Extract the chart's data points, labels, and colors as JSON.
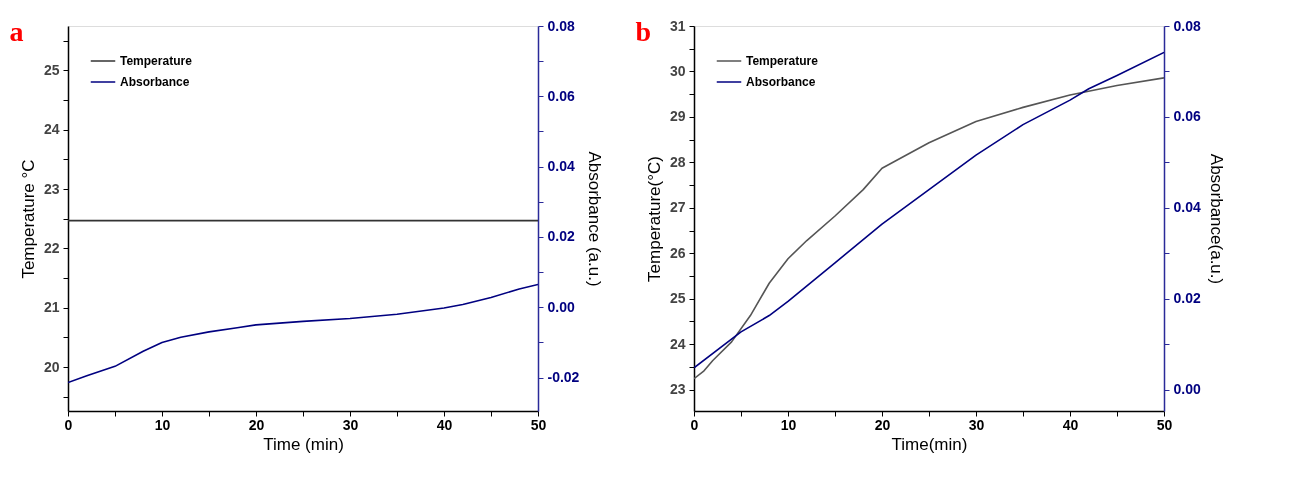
{
  "chart_data": [
    {
      "type": "line",
      "title": "a",
      "xlabel": "Time (min)",
      "ylabel": "Temperature °C",
      "y2label": "Absorbance (a.u.)",
      "xlim": [
        0,
        50
      ],
      "xticks": [
        0,
        {
          "value": 5,
          "label": null
        },
        10,
        {
          "value": 15,
          "label": null
        },
        20,
        {
          "value": 25,
          "label": null
        },
        30,
        {
          "value": 35,
          "label": null
        },
        40,
        {
          "value": 45,
          "label": null
        },
        50
      ],
      "ylim": [
        19.26,
        25.75
      ],
      "yticks": [
        {
          "value": 19.5,
          "label": null
        },
        20,
        {
          "value": 20.5,
          "label": null
        },
        21,
        {
          "value": 21.5,
          "label": null
        },
        22,
        {
          "value": 22.5,
          "label": null
        },
        23,
        {
          "value": 23.5,
          "label": null
        },
        24,
        {
          "value": 24.5,
          "label": null
        },
        25,
        {
          "value": 25.5,
          "label": null
        }
      ],
      "y2lim": [
        -0.0295,
        0.08
      ],
      "y2ticks": [
        -0.02,
        {
          "value": -0.01,
          "label": null
        },
        {
          "value": 0,
          "label": "0.00"
        },
        {
          "value": 0.01,
          "label": null
        },
        0.02,
        {
          "value": 0.03,
          "label": null
        },
        0.04,
        {
          "value": 0.05,
          "label": null
        },
        0.06,
        {
          "value": 0.07,
          "label": null
        },
        0.08
      ],
      "legend": "top left",
      "grid": false,
      "marker": "none",
      "line_style": "solid",
      "series": [
        {
          "name": "Temperature",
          "color": "#333333",
          "axis": "y",
          "x": [
            0,
            50
          ],
          "values": [
            22.47,
            22.47
          ]
        },
        {
          "name": "Absorbance",
          "color": "#000080",
          "axis": "y2",
          "x": [
            0,
            2,
            5,
            8,
            10,
            12,
            15,
            18,
            20,
            25,
            30,
            35,
            40,
            42,
            45,
            48,
            50
          ],
          "values": [
            -0.0214,
            -0.0195,
            -0.0168,
            -0.0125,
            -0.01,
            -0.0085,
            -0.007,
            -0.0058,
            -0.005,
            -0.004,
            -0.0032,
            -0.002,
            -0.0002,
            0.0008,
            0.0028,
            0.0052,
            0.0065
          ]
        }
      ]
    },
    {
      "type": "line",
      "title": "b",
      "xlabel": "Time(min)",
      "ylabel": "Temperature(°C)",
      "y2label": "Absorbance(a.u.)",
      "xlim": [
        0,
        50
      ],
      "xticks": [
        0,
        {
          "value": 5,
          "label": null
        },
        10,
        {
          "value": 15,
          "label": null
        },
        20,
        {
          "value": 25,
          "label": null
        },
        30,
        {
          "value": 35,
          "label": null
        },
        40,
        {
          "value": 45,
          "label": null
        },
        50
      ],
      "ylim": [
        22.53,
        31
      ],
      "yticks": [
        23,
        {
          "value": 23.5,
          "label": null
        },
        24,
        {
          "value": 24.5,
          "label": null
        },
        25,
        {
          "value": 25.5,
          "label": null
        },
        26,
        {
          "value": 26.5,
          "label": null
        },
        27,
        {
          "value": 27.5,
          "label": null
        },
        28,
        {
          "value": 28.5,
          "label": null
        },
        29,
        {
          "value": 29.5,
          "label": null
        },
        30,
        {
          "value": 30.5,
          "label": null
        },
        31
      ],
      "y2lim": [
        -0.0047,
        0.08
      ],
      "y2ticks": [
        {
          "value": 0,
          "label": "0.00"
        },
        {
          "value": 0.01,
          "label": null
        },
        0.02,
        {
          "value": 0.03,
          "label": null
        },
        0.04,
        {
          "value": 0.05,
          "label": null
        },
        0.06,
        {
          "value": 0.07,
          "label": null
        },
        0.08
      ],
      "legend": "top left",
      "grid": false,
      "marker": "none",
      "line_style": "solid",
      "series": [
        {
          "name": "Temperature",
          "color": "#555555",
          "axis": "y",
          "x": [
            0,
            1,
            2,
            4,
            6,
            8,
            10,
            12,
            15,
            18,
            20,
            25,
            30,
            35,
            40,
            45,
            50
          ],
          "values": [
            23.24,
            23.4,
            23.64,
            24.05,
            24.63,
            25.34,
            25.88,
            26.28,
            26.82,
            27.4,
            27.87,
            28.43,
            28.9,
            29.21,
            29.48,
            29.69,
            29.86
          ]
        },
        {
          "name": "Absorbance",
          "color": "#000080",
          "axis": "y2",
          "x": [
            0,
            5,
            8,
            10,
            15,
            20,
            25,
            30,
            35,
            40,
            42,
            45,
            50
          ],
          "values": [
            0.0048,
            0.0127,
            0.0163,
            0.0194,
            0.0279,
            0.0364,
            0.044,
            0.0516,
            0.0583,
            0.0637,
            0.0662,
            0.0691,
            0.0742
          ]
        }
      ]
    }
  ]
}
